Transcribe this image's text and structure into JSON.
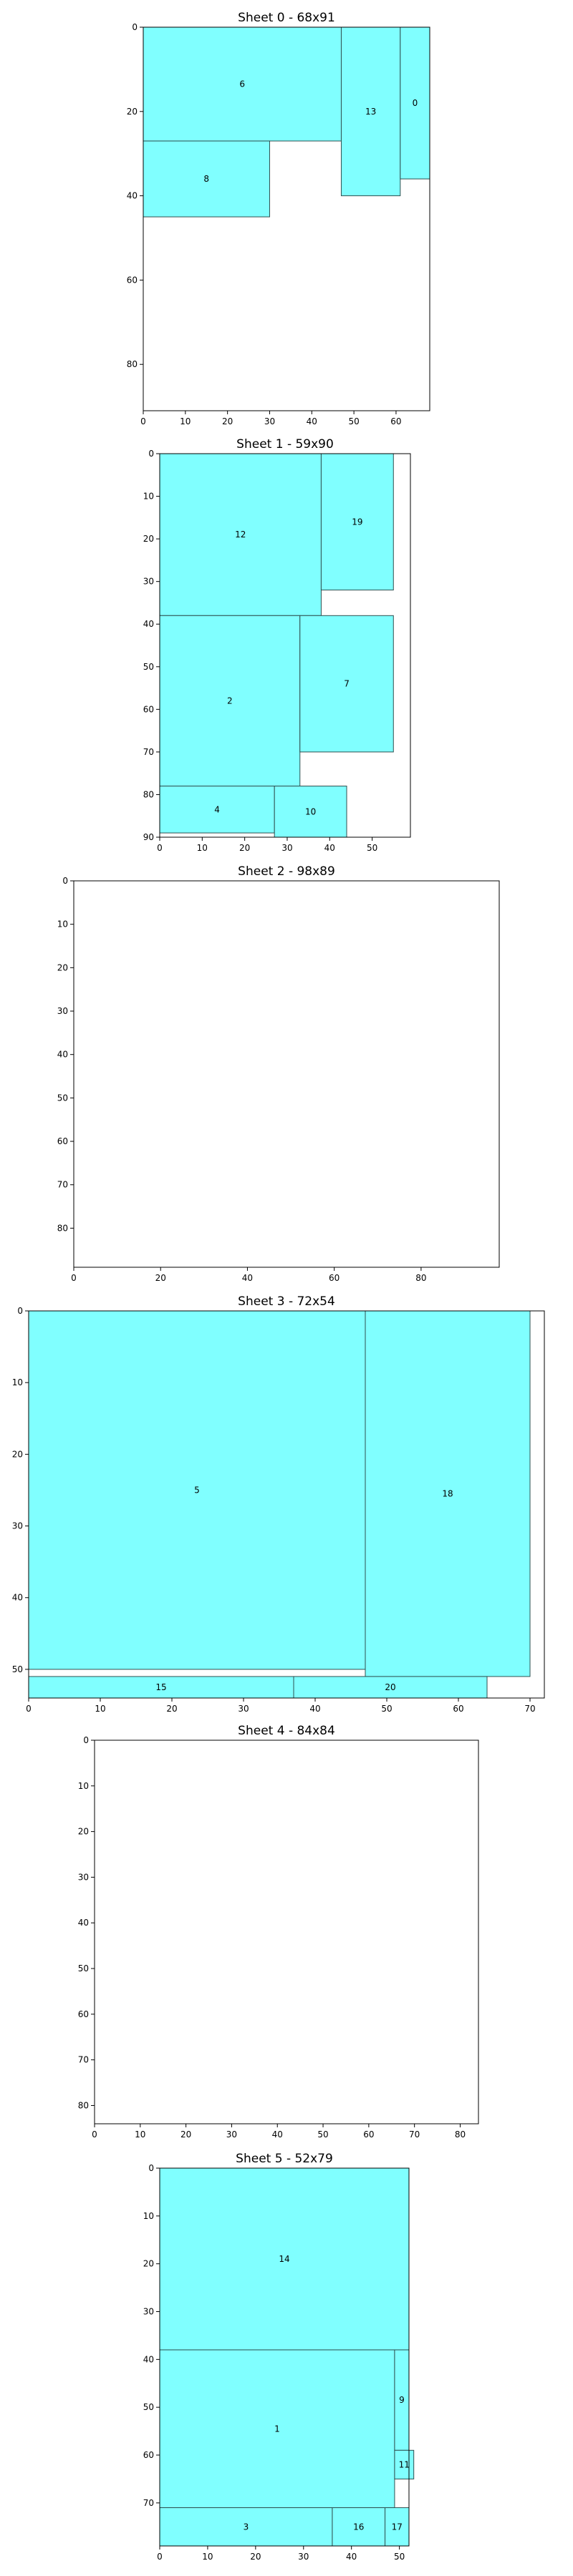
{
  "colors": {
    "piece_fill": "#80ffff",
    "piece_edge": "#2f4f4f",
    "frame": "#000000",
    "background": "#ffffff"
  },
  "chart_data": [
    {
      "type": "sheet-layout",
      "title": "Sheet 0 - 68x91",
      "width": 68,
      "height": 91,
      "xlim": [
        0,
        68
      ],
      "ylim": [
        91,
        0
      ],
      "xticks": [
        0,
        10,
        20,
        30,
        40,
        50,
        60
      ],
      "yticks": [
        0,
        20,
        40,
        60,
        80
      ],
      "pieces": [
        {
          "label": "6",
          "x": 0,
          "y": 0,
          "w": 47,
          "h": 27
        },
        {
          "label": "13",
          "x": 47,
          "y": 0,
          "w": 14,
          "h": 40
        },
        {
          "label": "0",
          "x": 61,
          "y": 0,
          "w": 7,
          "h": 36
        },
        {
          "label": "8",
          "x": 0,
          "y": 27,
          "w": 30,
          "h": 18
        }
      ]
    },
    {
      "type": "sheet-layout",
      "title": "Sheet 1 - 59x90",
      "width": 59,
      "height": 90,
      "xlim": [
        0,
        59
      ],
      "ylim": [
        90,
        0
      ],
      "xticks": [
        0,
        10,
        20,
        30,
        40,
        50
      ],
      "yticks": [
        0,
        10,
        20,
        30,
        40,
        50,
        60,
        70,
        80,
        90
      ],
      "pieces": [
        {
          "label": "12",
          "x": 0,
          "y": 0,
          "w": 38,
          "h": 38
        },
        {
          "label": "19",
          "x": 38,
          "y": 0,
          "w": 17,
          "h": 32
        },
        {
          "label": "2",
          "x": 0,
          "y": 38,
          "w": 33,
          "h": 40
        },
        {
          "label": "7",
          "x": 33,
          "y": 38,
          "w": 22,
          "h": 32
        },
        {
          "label": "4",
          "x": 0,
          "y": 78,
          "w": 27,
          "h": 11
        },
        {
          "label": "10",
          "x": 27,
          "y": 78,
          "w": 17,
          "h": 12
        }
      ]
    },
    {
      "type": "sheet-layout",
      "title": "Sheet 2 - 98x89",
      "width": 98,
      "height": 89,
      "xlim": [
        0,
        98
      ],
      "ylim": [
        89,
        0
      ],
      "xticks": [
        0,
        20,
        40,
        60,
        80
      ],
      "yticks": [
        0,
        10,
        20,
        30,
        40,
        50,
        60,
        70,
        80
      ],
      "pieces": []
    },
    {
      "type": "sheet-layout",
      "title": "Sheet 3 - 72x54",
      "width": 72,
      "height": 54,
      "xlim": [
        0,
        72
      ],
      "ylim": [
        54,
        0
      ],
      "xticks": [
        0,
        10,
        20,
        30,
        40,
        50,
        60,
        70
      ],
      "yticks": [
        0,
        10,
        20,
        30,
        40,
        50
      ],
      "pieces": [
        {
          "label": "5",
          "x": 0,
          "y": 0,
          "w": 47,
          "h": 50
        },
        {
          "label": "18",
          "x": 47,
          "y": 0,
          "w": 23,
          "h": 51
        },
        {
          "label": "15",
          "x": 0,
          "y": 51,
          "w": 37,
          "h": 3
        },
        {
          "label": "20",
          "x": 37,
          "y": 51,
          "w": 27,
          "h": 3
        }
      ]
    },
    {
      "type": "sheet-layout",
      "title": "Sheet 4 - 84x84",
      "width": 84,
      "height": 84,
      "xlim": [
        0,
        84
      ],
      "ylim": [
        84,
        0
      ],
      "xticks": [
        0,
        10,
        20,
        30,
        40,
        50,
        60,
        70,
        80
      ],
      "yticks": [
        0,
        10,
        20,
        30,
        40,
        50,
        60,
        70,
        80
      ],
      "pieces": []
    },
    {
      "type": "sheet-layout",
      "title": "Sheet 5 - 52x79",
      "width": 52,
      "height": 79,
      "xlim": [
        0,
        52
      ],
      "ylim": [
        79,
        0
      ],
      "xticks": [
        0,
        10,
        20,
        30,
        40,
        50
      ],
      "yticks": [
        0,
        10,
        20,
        30,
        40,
        50,
        60,
        70
      ],
      "pieces": [
        {
          "label": "14",
          "x": 0,
          "y": 0,
          "w": 52,
          "h": 38
        },
        {
          "label": "1",
          "x": 0,
          "y": 38,
          "w": 49,
          "h": 33
        },
        {
          "label": "9",
          "x": 49,
          "y": 38,
          "w": 3,
          "h": 21
        },
        {
          "label": "11",
          "x": 49,
          "y": 59,
          "w": 4,
          "h": 6
        },
        {
          "label": "3",
          "x": 0,
          "y": 71,
          "w": 36,
          "h": 8
        },
        {
          "label": "16",
          "x": 36,
          "y": 71,
          "w": 11,
          "h": 8
        },
        {
          "label": "17",
          "x": 47,
          "y": 71,
          "w": 5,
          "h": 8
        }
      ]
    }
  ]
}
